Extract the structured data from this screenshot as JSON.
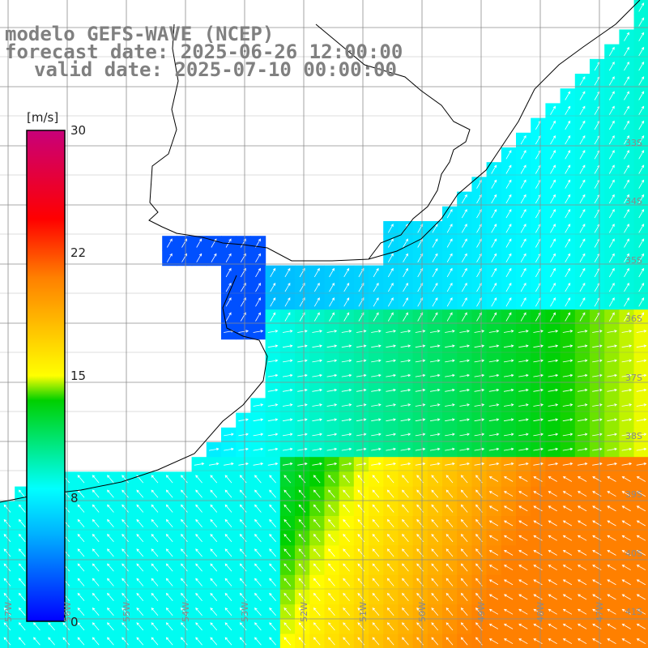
{
  "header": {
    "line1": "modelo GEFS-WAVE (NCEP)",
    "line2": "forecast date: 2025-06-26 12:00:00",
    "line3": "valid date: 2025-07-10 00:00:00"
  },
  "colorbar": {
    "unit": "[m/s]",
    "ticks": [
      "30",
      "22",
      "15",
      "8",
      "0"
    ],
    "colors": [
      "#0000ff",
      "#00b4ff",
      "#00ffff",
      "#00d000",
      "#ffff00",
      "#ff8000",
      "#ff0000",
      "#c8007a"
    ]
  },
  "latitude_labels": [
    "33S",
    "34S",
    "35S",
    "36S",
    "37S",
    "38S",
    "39S",
    "40S",
    "41S"
  ],
  "longitude_labels": [
    "57W",
    "56W",
    "55W",
    "54W",
    "53W",
    "52W",
    "51W",
    "50W",
    "49W",
    "48W",
    "47W"
  ],
  "colors": {
    "grid": "#8c8c8c",
    "coast": "#000000",
    "vector": "#ffffff",
    "weak": "#0a3ef0",
    "moderate": "#0aa8ff",
    "strong": "#ffff00"
  }
}
